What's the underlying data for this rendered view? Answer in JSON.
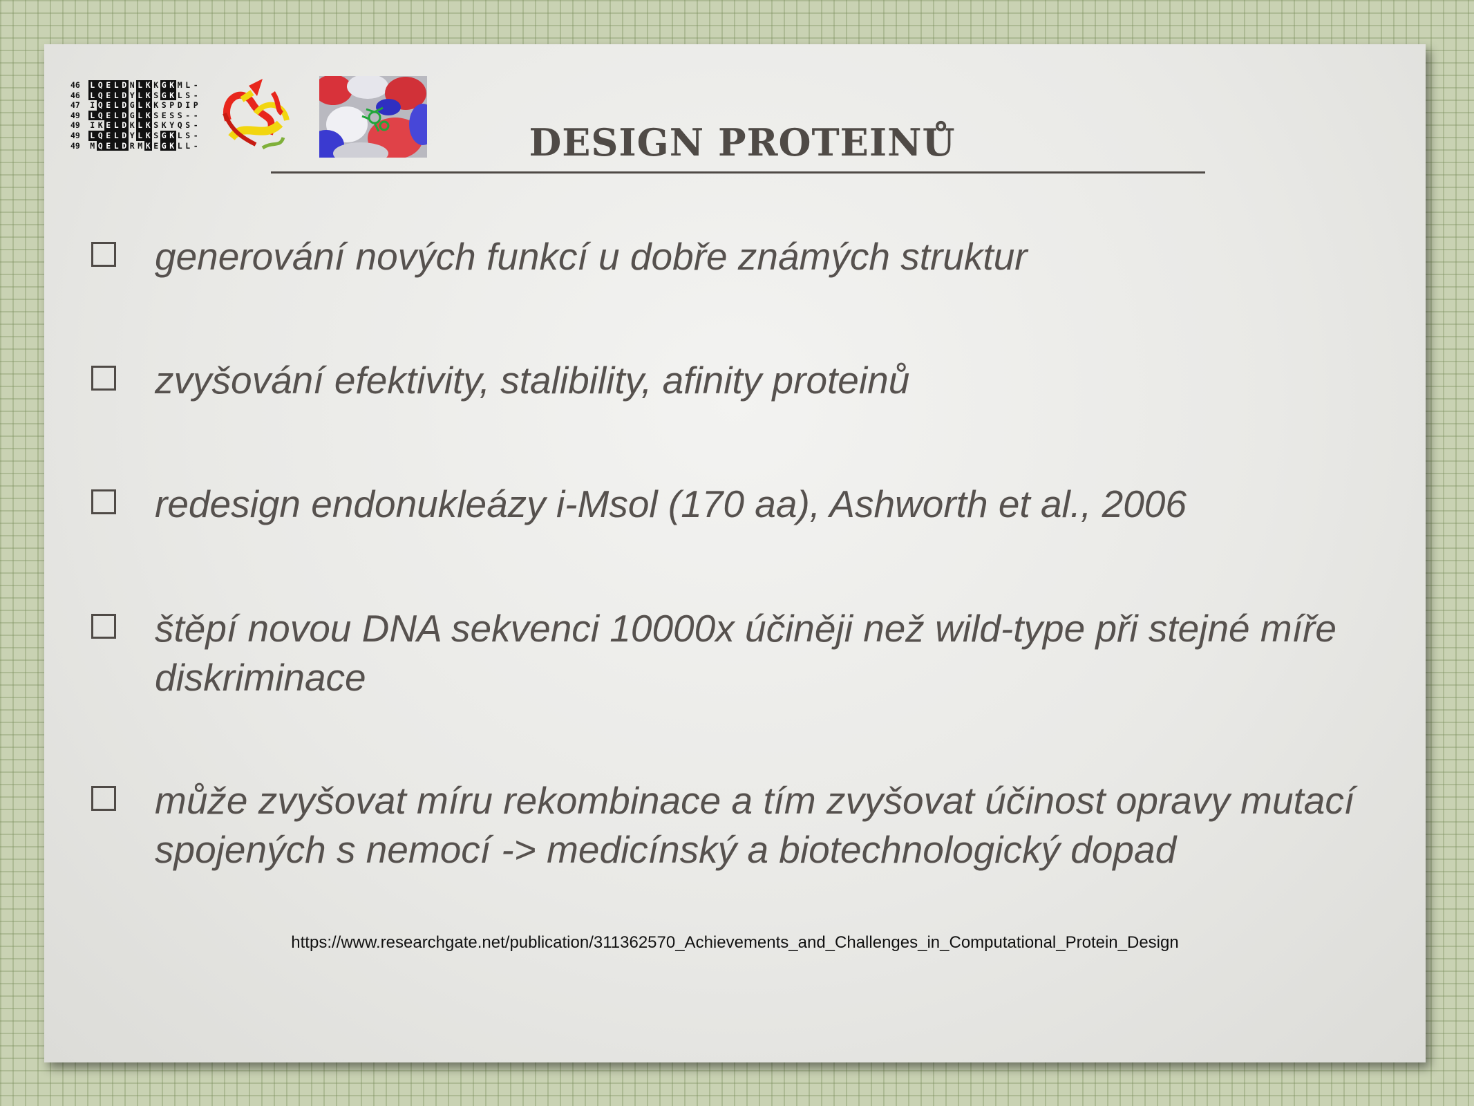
{
  "slide": {
    "title": "DESIGN PROTEINŮ",
    "alignment": {
      "rows": [
        {
          "num": "46",
          "residues": "LQELDNLKKGKML-",
          "highlight": [
            1,
            1,
            1,
            1,
            1,
            0,
            1,
            1,
            0,
            1,
            1,
            0,
            0,
            0
          ]
        },
        {
          "num": "46",
          "residues": "LQELDYLKSGKLS-",
          "highlight": [
            1,
            1,
            1,
            1,
            1,
            0,
            1,
            1,
            0,
            1,
            1,
            0,
            0,
            0
          ]
        },
        {
          "num": "47",
          "residues": "IQELDGLKKSPDIP",
          "highlight": [
            0,
            1,
            1,
            1,
            1,
            0,
            1,
            1,
            0,
            0,
            0,
            0,
            0,
            0
          ]
        },
        {
          "num": "49",
          "residues": "LQELDGLKSESS--",
          "highlight": [
            1,
            1,
            1,
            1,
            1,
            0,
            1,
            1,
            0,
            0,
            0,
            0,
            0,
            0
          ]
        },
        {
          "num": "49",
          "residues": "IKELDKLKSKYQS-",
          "highlight": [
            0,
            0,
            1,
            1,
            1,
            0,
            1,
            1,
            0,
            0,
            0,
            0,
            0,
            0
          ]
        },
        {
          "num": "49",
          "residues": "LQELDYLKSGKLS-",
          "highlight": [
            1,
            1,
            1,
            1,
            1,
            0,
            1,
            1,
            0,
            1,
            1,
            0,
            0,
            0
          ]
        },
        {
          "num": "49",
          "residues": "MQELDRMKEGKLL-",
          "highlight": [
            0,
            1,
            1,
            1,
            1,
            0,
            0,
            1,
            0,
            1,
            1,
            0,
            0,
            0
          ]
        }
      ]
    },
    "bullets": [
      {
        "text": "generování nových funkcí u dobře známých struktur"
      },
      {
        "text": "zvyšování efektivity, stalibility, afinity proteinů"
      },
      {
        "text": "redesign endonukleázy i-Msol (170 aa), Ashworth et al., 2006"
      },
      {
        "text": "štěpí novou DNA sekvenci 10000x účiněji než wild-type při stejné míře diskriminace"
      },
      {
        "text": "může zvyšovat míru rekombinace a tím zvyšovat účinost opravy mutací spojených s nemocí -> medicínský a biotechnologický dopad"
      }
    ],
    "source_url": "https://www.researchgate.net/publication/311362570_Achievements_and_Challenges_in_Computational_Protein_Design",
    "icons": [
      "sequence-alignment-image",
      "protein-ribbon-image",
      "protein-surface-image",
      "checkbox-icon"
    ],
    "colors": {
      "text": "#56514e",
      "background": "#c9d2b3",
      "slide": "#ececea"
    }
  }
}
